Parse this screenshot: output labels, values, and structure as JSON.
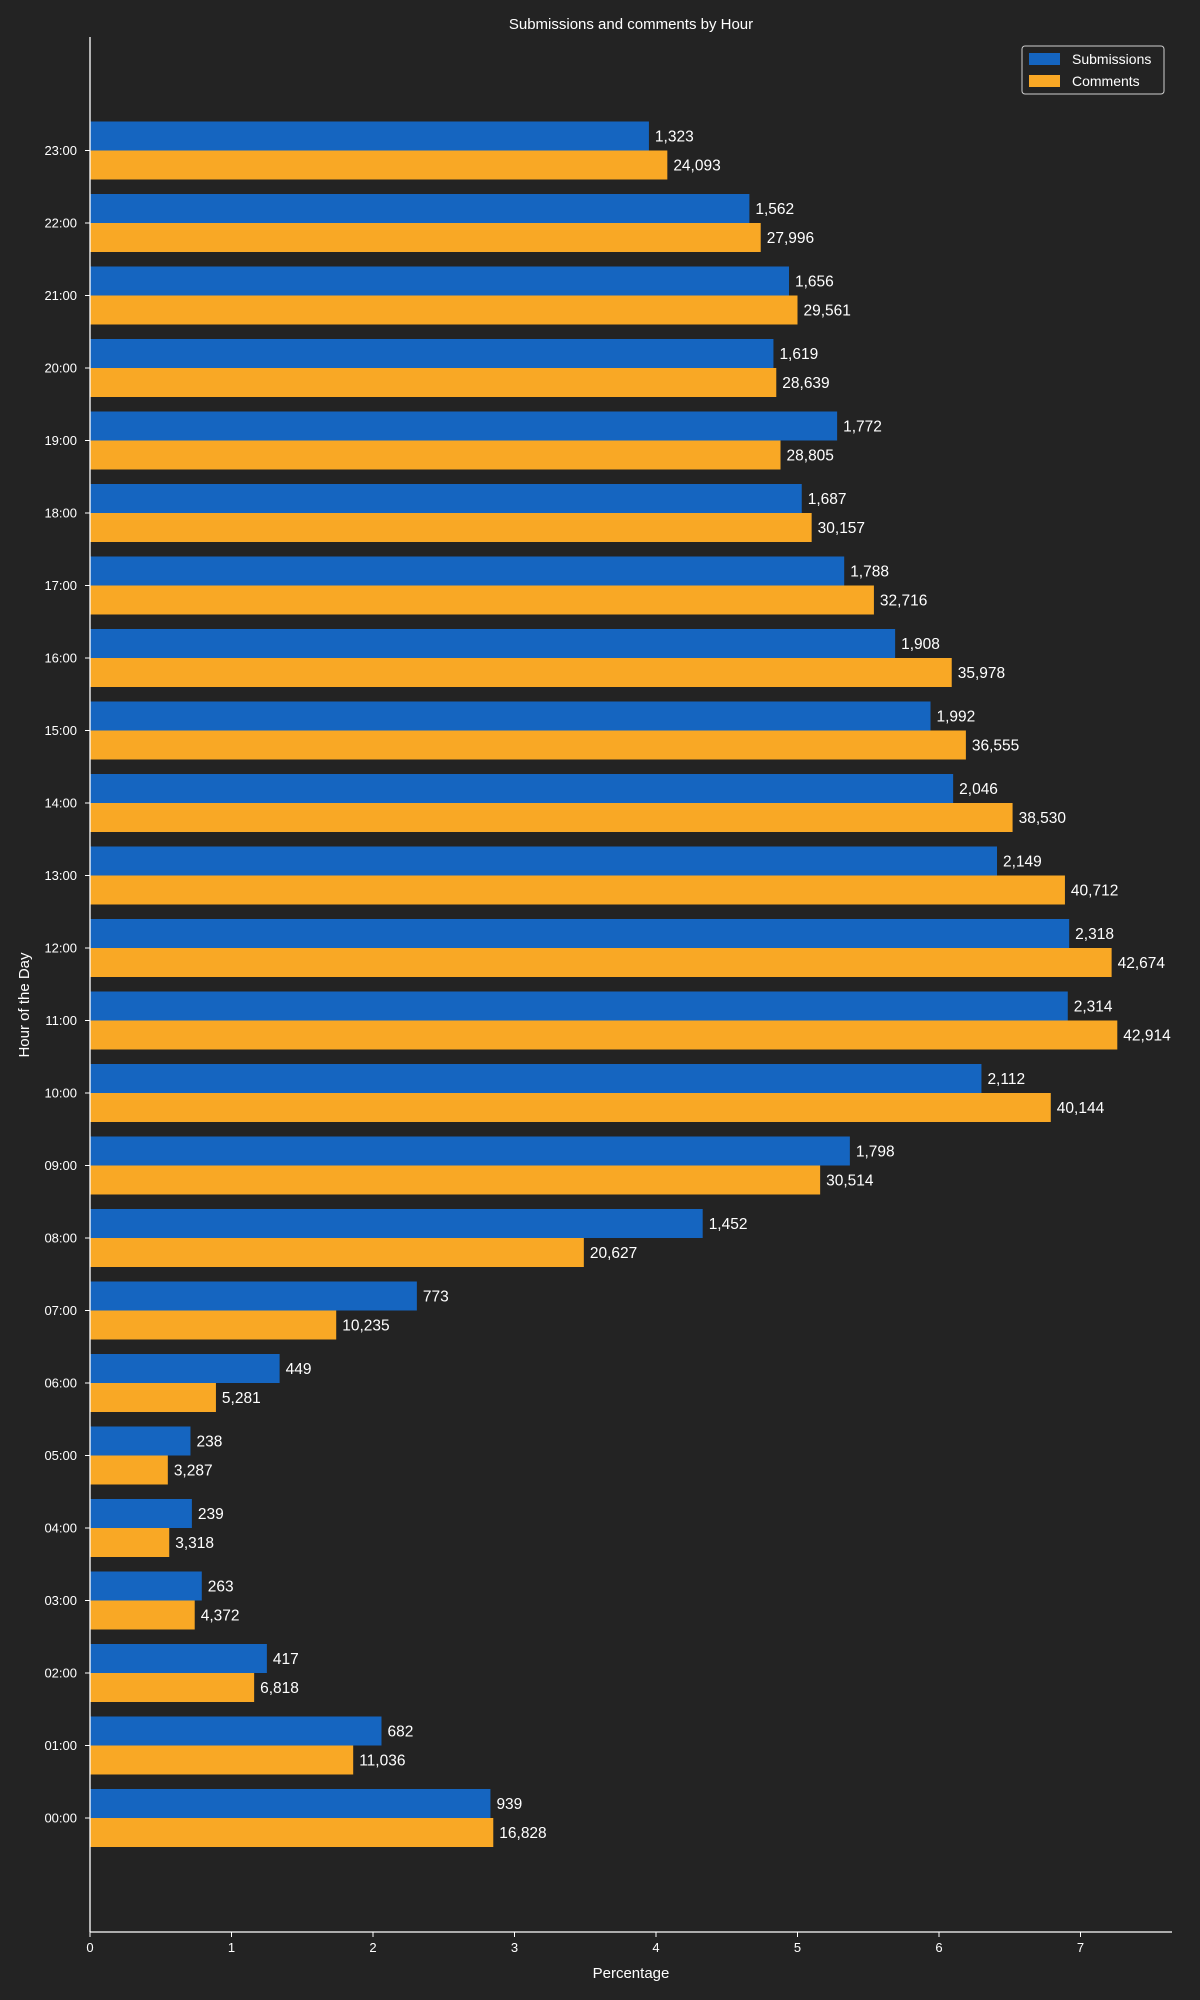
{
  "chart_data": {
    "type": "bar",
    "orientation": "horizontal",
    "title": "Submissions and comments by Hour",
    "xlabel": "Percentage",
    "ylabel": "Hour of the Day",
    "xlim": [
      0,
      7.6
    ],
    "xticks": [
      "0",
      "1",
      "2",
      "3",
      "4",
      "5",
      "6",
      "7"
    ],
    "categories": [
      "00:00",
      "01:00",
      "02:00",
      "03:00",
      "04:00",
      "05:00",
      "06:00",
      "07:00",
      "08:00",
      "09:00",
      "10:00",
      "11:00",
      "12:00",
      "13:00",
      "14:00",
      "15:00",
      "16:00",
      "17:00",
      "18:00",
      "19:00",
      "20:00",
      "21:00",
      "22:00",
      "23:00"
    ],
    "legend_position": "top-right",
    "grid": false,
    "series": [
      {
        "name": "Submissions",
        "color": "#1565c0",
        "values": [
          2.83,
          2.06,
          1.25,
          0.79,
          0.72,
          0.71,
          1.34,
          2.31,
          4.33,
          5.37,
          6.3,
          6.91,
          6.92,
          6.41,
          6.1,
          5.94,
          5.69,
          5.33,
          5.03,
          5.28,
          4.83,
          4.94,
          4.66,
          3.95
        ],
        "labels": [
          "939",
          "682",
          "417",
          "263",
          "239",
          "238",
          "449",
          "773",
          "1,452",
          "1,798",
          "2,112",
          "2,314",
          "2,318",
          "2,149",
          "2,046",
          "1,992",
          "1,908",
          "1,788",
          "1,687",
          "1,772",
          "1,619",
          "1,656",
          "1,562",
          "1,323"
        ]
      },
      {
        "name": "Comments",
        "color": "#f9a825",
        "values": [
          2.85,
          1.86,
          1.16,
          0.74,
          0.56,
          0.55,
          0.89,
          1.74,
          3.49,
          5.16,
          6.79,
          7.26,
          7.22,
          6.89,
          6.52,
          6.19,
          6.09,
          5.54,
          5.1,
          4.88,
          4.85,
          5.0,
          4.74,
          4.08
        ],
        "labels": [
          "16,828",
          "11,036",
          "6,818",
          "4,372",
          "3,318",
          "3,287",
          "5,281",
          "10,235",
          "20,627",
          "30,514",
          "40,144",
          "42,914",
          "42,674",
          "40,712",
          "38,530",
          "36,555",
          "35,978",
          "32,716",
          "30,157",
          "28,805",
          "28,639",
          "29,561",
          "27,996",
          "24,093"
        ]
      }
    ]
  }
}
